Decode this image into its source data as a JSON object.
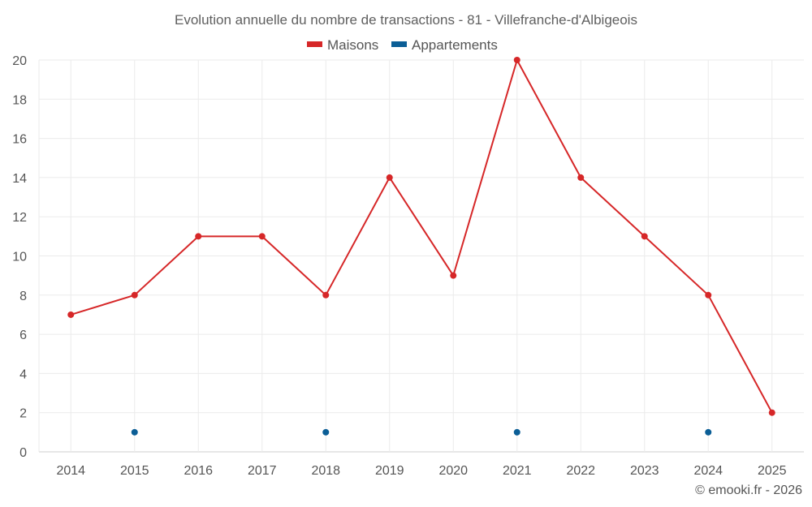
{
  "chart_data": {
    "type": "line",
    "title": "Evolution annuelle du nombre de transactions - 81 - Villefranche-d'Albigeois",
    "categories": [
      "2014",
      "2015",
      "2016",
      "2017",
      "2018",
      "2019",
      "2020",
      "2021",
      "2022",
      "2023",
      "2024",
      "2025"
    ],
    "series": [
      {
        "name": "Maisons",
        "color": "#d62728",
        "values": [
          7,
          8,
          11,
          11,
          8,
          14,
          9,
          20,
          14,
          11,
          8,
          2
        ]
      },
      {
        "name": "Appartements",
        "color": "#0b5e96",
        "values": [
          null,
          1,
          null,
          null,
          1,
          null,
          null,
          1,
          null,
          null,
          1,
          null
        ]
      }
    ],
    "ylim": [
      0,
      20
    ],
    "yticks": [
      "0",
      "2",
      "4",
      "6",
      "8",
      "10",
      "12",
      "14",
      "16",
      "18",
      "20"
    ],
    "grid": true,
    "legend": "top-center",
    "xlabel": "",
    "ylabel": ""
  },
  "credit": "© emooki.fr - 2026"
}
